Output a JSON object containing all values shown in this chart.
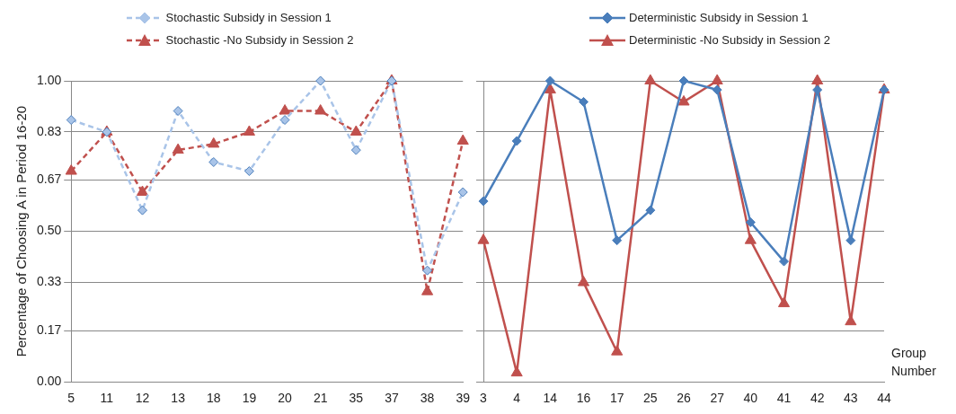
{
  "chart_data": [
    {
      "type": "line",
      "ylabel": "Percentage of Choosing A in Period 16-20",
      "categories": [
        "5",
        "11",
        "12",
        "13",
        "18",
        "19",
        "20",
        "21",
        "35",
        "37",
        "38",
        "39"
      ],
      "series": [
        {
          "name": "Stochastic Subsidy in Session 1",
          "color": "#a9c4e8",
          "marker": "diamond",
          "line_style": "dashed",
          "values": [
            0.87,
            0.83,
            0.57,
            0.9,
            0.73,
            0.7,
            0.87,
            1.0,
            0.77,
            1.0,
            0.37,
            0.63
          ]
        },
        {
          "name": "Stochastic -No Subsidy in Session 2",
          "color": "#c0504d",
          "marker": "triangle",
          "line_style": "dashed",
          "values": [
            0.7,
            0.83,
            0.63,
            0.77,
            0.79,
            0.83,
            0.9,
            0.9,
            0.83,
            1.0,
            0.3,
            0.8
          ]
        }
      ],
      "ylim": [
        0,
        1
      ],
      "yticks": [
        {
          "value": 0,
          "label": "0.00"
        },
        0.17,
        0.33,
        {
          "value": 0.5,
          "label": "0.50"
        },
        0.67,
        0.83,
        {
          "value": 1,
          "label": "1.00"
        }
      ],
      "grid": "y",
      "legend": "top"
    },
    {
      "type": "line",
      "xlabel": "Group Number",
      "categories": [
        "3",
        "4",
        "14",
        "16",
        "17",
        "25",
        "26",
        "27",
        "40",
        "41",
        "42",
        "43",
        "44"
      ],
      "series": [
        {
          "name": "Deterministic Subsidy in Session 1",
          "color": "#4a7ebb",
          "marker": "diamond",
          "line_style": "solid",
          "values": [
            0.6,
            0.8,
            1.0,
            0.93,
            0.47,
            0.57,
            1.0,
            0.97,
            0.53,
            0.4,
            0.97,
            0.47,
            0.97
          ]
        },
        {
          "name": "Deterministic -No Subsidy in Session 2",
          "color": "#c0504d",
          "marker": "triangle",
          "line_style": "solid",
          "values": [
            0.47,
            0.03,
            0.97,
            0.33,
            0.1,
            1.0,
            0.93,
            1.0,
            0.47,
            0.26,
            1.0,
            0.2,
            0.97
          ]
        }
      ],
      "ylim": [
        0,
        1
      ],
      "yticks": [
        {
          "value": 0,
          "label": null
        },
        {
          "value": 0.17,
          "label": null
        },
        {
          "value": 0.33,
          "label": null
        },
        {
          "value": 0.5,
          "label": null
        },
        {
          "value": 0.67,
          "label": null
        },
        {
          "value": 0.83,
          "label": null
        },
        {
          "value": 1,
          "label": null
        }
      ],
      "grid": "y",
      "legend": "top",
      "tick_labels": "x"
    }
  ]
}
